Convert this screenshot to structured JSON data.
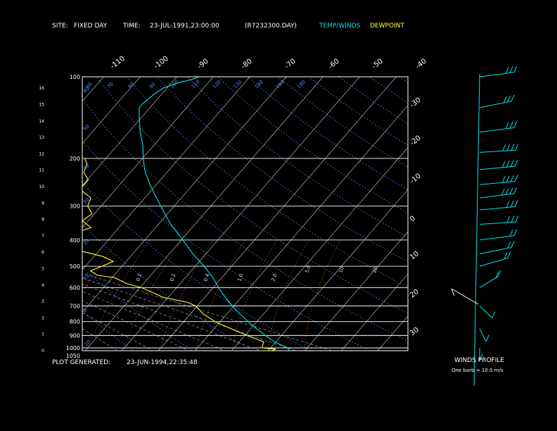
{
  "header": {
    "site_label": "SITE:",
    "site_value": "FIXED DAY",
    "time_label": "TIME:",
    "time_value": "23-JUL-1991,23:00:00",
    "file_name": "(R7232300.DAY)",
    "legend_temp": "TEMP/WINDS",
    "legend_dew": "DEWPOINT"
  },
  "footer": {
    "label": "PLOT GENERATED:",
    "value": "23-JUN-1994,22:35:48"
  },
  "winds_panel": {
    "title": "WINDS PROFILE",
    "subtitle": "One barb = 10.0 m/s"
  },
  "colors": {
    "temp": "#00e5e5",
    "dew": "#ffff33",
    "grid": "#ffffff",
    "dry_adiabat": "#5a8cff",
    "mixing_ratio": "#ff7a3a",
    "moist_adiabat": "#9aa0a8"
  },
  "chart_data": {
    "type": "line",
    "kind": "skew-T log-P sounding",
    "pressure_levels": [
      100,
      200,
      300,
      400,
      500,
      600,
      700,
      800,
      900,
      1000,
      1050
    ],
    "pressure_labels": [
      "100",
      "200",
      "300",
      "400",
      "500",
      "600",
      "700",
      "800",
      "900",
      "1000",
      "1050"
    ],
    "height_km_ticks": [
      "0",
      "1",
      "2",
      "3",
      "4",
      "5",
      "6",
      "7",
      "8",
      "9",
      "10",
      "11",
      "12",
      "13",
      "14",
      "15",
      "16"
    ],
    "temp_ticks_top": [
      "-110",
      "-100",
      "-90",
      "-80",
      "-70",
      "-60",
      "-50",
      "-40"
    ],
    "temp_ticks_right": [
      "-30",
      "-20",
      "-10",
      "0",
      "10",
      "20",
      "30"
    ],
    "dry_adiabat_labels": [
      "60",
      "50",
      "40",
      "30",
      "20",
      "10",
      "0",
      "-10",
      "-20",
      "-30"
    ],
    "theta_labels": [
      "60",
      "70",
      "80",
      "90",
      "100",
      "110",
      "120",
      "130",
      "140",
      "150",
      "160"
    ],
    "mixing_ratio_labels": [
      "0.1",
      "0.2",
      "0.4",
      "1.0",
      "2.0",
      "5.0",
      "10",
      "20"
    ],
    "series": [
      {
        "name": "TEMP/WINDS",
        "points": [
          [
            1050,
            26
          ],
          [
            1000,
            24
          ],
          [
            950,
            19
          ],
          [
            900,
            15
          ],
          [
            850,
            11
          ],
          [
            800,
            7
          ],
          [
            750,
            3
          ],
          [
            700,
            -1
          ],
          [
            650,
            -5
          ],
          [
            600,
            -9
          ],
          [
            550,
            -13
          ],
          [
            500,
            -18
          ],
          [
            450,
            -24
          ],
          [
            400,
            -30
          ],
          [
            350,
            -37
          ],
          [
            300,
            -44
          ],
          [
            250,
            -52
          ],
          [
            220,
            -57
          ],
          [
            200,
            -60
          ],
          [
            180,
            -63
          ],
          [
            160,
            -67
          ],
          [
            140,
            -71
          ],
          [
            130,
            -73
          ],
          [
            125,
            -73
          ],
          [
            115,
            -72
          ],
          [
            110,
            -71
          ],
          [
            105,
            -68
          ],
          [
            102,
            -65
          ],
          [
            100,
            -64
          ]
        ]
      },
      {
        "name": "DEWPOINT",
        "points": [
          [
            1050,
            24
          ],
          [
            1030,
            20
          ],
          [
            1010,
            21
          ],
          [
            1000,
            17
          ],
          [
            950,
            16
          ],
          [
            900,
            10
          ],
          [
            850,
            4
          ],
          [
            800,
            -2
          ],
          [
            750,
            -7
          ],
          [
            700,
            -11
          ],
          [
            680,
            -14
          ],
          [
            650,
            -22
          ],
          [
            600,
            -30
          ],
          [
            580,
            -35
          ],
          [
            550,
            -40
          ],
          [
            540,
            -45
          ],
          [
            520,
            -48
          ],
          [
            500,
            -46
          ],
          [
            480,
            -44
          ],
          [
            460,
            -48
          ],
          [
            440,
            -55
          ],
          [
            420,
            -58
          ],
          [
            400,
            -62
          ],
          [
            380,
            -62
          ],
          [
            360,
            -58
          ],
          [
            340,
            -62
          ],
          [
            320,
            -61
          ],
          [
            300,
            -64
          ],
          [
            280,
            -65
          ],
          [
            260,
            -70
          ],
          [
            240,
            -70
          ],
          [
            225,
            -73
          ],
          [
            210,
            -74
          ],
          [
            205,
            -75
          ],
          [
            200,
            -76
          ]
        ]
      }
    ],
    "winds": [
      {
        "p": 100,
        "dir": 70,
        "spd": 30
      },
      {
        "p": 130,
        "dir": 300,
        "spd": 30
      },
      {
        "p": 160,
        "dir": 290,
        "spd": 30
      },
      {
        "p": 190,
        "dir": 280,
        "spd": 40
      },
      {
        "p": 220,
        "dir": 285,
        "spd": 40
      },
      {
        "p": 250,
        "dir": 285,
        "spd": 40
      },
      {
        "p": 280,
        "dir": 290,
        "spd": 40
      },
      {
        "p": 310,
        "dir": 285,
        "spd": 30
      },
      {
        "p": 350,
        "dir": 280,
        "spd": 30
      },
      {
        "p": 400,
        "dir": 290,
        "spd": 20
      },
      {
        "p": 450,
        "dir": 300,
        "spd": 20
      },
      {
        "p": 500,
        "dir": 310,
        "spd": 20
      },
      {
        "p": 600,
        "dir": 330,
        "spd": 20
      },
      {
        "p": 700,
        "dir": 200,
        "spd": 10
      },
      {
        "p": 850,
        "dir": 170,
        "spd": 10
      },
      {
        "p": 1000,
        "dir": 180,
        "spd": 10
      }
    ]
  }
}
